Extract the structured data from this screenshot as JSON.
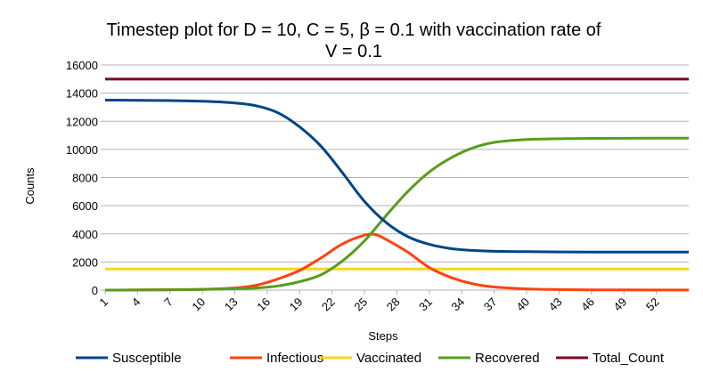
{
  "chart_data": {
    "type": "line",
    "title_line1": "Timestep plot for D = 10, C = 5, β =  0.1 with vaccination rate of",
    "title_line2": "V = 0.1",
    "xlabel": "Steps",
    "ylabel": "Counts",
    "xlim": [
      1,
      55
    ],
    "ylim": [
      0,
      16000
    ],
    "y_ticks": [
      0,
      2000,
      4000,
      6000,
      8000,
      10000,
      12000,
      14000,
      16000
    ],
    "x_tick_labels": [
      "1",
      "4",
      "7",
      "10",
      "13",
      "16",
      "19",
      "22",
      "25",
      "28",
      "31",
      "34",
      "37",
      "40",
      "43",
      "46",
      "49",
      "52"
    ],
    "grid": "horizontal",
    "legend_position": "bottom",
    "series": [
      {
        "name": "Susceptible",
        "color": "#004586",
        "points": [
          [
            1,
            13500
          ],
          [
            4,
            13490
          ],
          [
            7,
            13470
          ],
          [
            10,
            13420
          ],
          [
            13,
            13300
          ],
          [
            15,
            13100
          ],
          [
            17,
            12600
          ],
          [
            19,
            11600
          ],
          [
            21,
            10200
          ],
          [
            23,
            8300
          ],
          [
            25,
            6300
          ],
          [
            27,
            4800
          ],
          [
            29,
            3800
          ],
          [
            31,
            3250
          ],
          [
            33,
            2950
          ],
          [
            35,
            2820
          ],
          [
            37,
            2760
          ],
          [
            40,
            2730
          ],
          [
            43,
            2715
          ],
          [
            46,
            2705
          ],
          [
            49,
            2700
          ],
          [
            52,
            2700
          ],
          [
            55,
            2700
          ]
        ]
      },
      {
        "name": "Infectious",
        "color": "#ff420e",
        "points": [
          [
            1,
            0
          ],
          [
            4,
            10
          ],
          [
            7,
            30
          ],
          [
            10,
            60
          ],
          [
            13,
            150
          ],
          [
            15,
            350
          ],
          [
            17,
            800
          ],
          [
            19,
            1400
          ],
          [
            21,
            2300
          ],
          [
            23,
            3300
          ],
          [
            25,
            3900
          ],
          [
            26,
            3950
          ],
          [
            27,
            3600
          ],
          [
            29,
            2700
          ],
          [
            31,
            1600
          ],
          [
            33,
            900
          ],
          [
            35,
            450
          ],
          [
            37,
            220
          ],
          [
            40,
            90
          ],
          [
            43,
            40
          ],
          [
            46,
            20
          ],
          [
            49,
            10
          ],
          [
            52,
            5
          ],
          [
            55,
            5
          ]
        ]
      },
      {
        "name": "Vaccinated",
        "color": "#ffd320",
        "points": [
          [
            1,
            1500
          ],
          [
            55,
            1500
          ]
        ]
      },
      {
        "name": "Recovered",
        "color": "#579d1c",
        "points": [
          [
            1,
            0
          ],
          [
            4,
            5
          ],
          [
            7,
            20
          ],
          [
            10,
            50
          ],
          [
            13,
            100
          ],
          [
            15,
            150
          ],
          [
            17,
            300
          ],
          [
            19,
            600
          ],
          [
            21,
            1100
          ],
          [
            23,
            2100
          ],
          [
            25,
            3500
          ],
          [
            27,
            5300
          ],
          [
            29,
            7000
          ],
          [
            31,
            8400
          ],
          [
            33,
            9400
          ],
          [
            35,
            10100
          ],
          [
            37,
            10500
          ],
          [
            40,
            10700
          ],
          [
            43,
            10760
          ],
          [
            46,
            10780
          ],
          [
            49,
            10790
          ],
          [
            52,
            10800
          ],
          [
            55,
            10800
          ]
        ]
      },
      {
        "name": "Total_Count",
        "color": "#7e0021",
        "points": [
          [
            1,
            15000
          ],
          [
            55,
            15000
          ]
        ]
      }
    ]
  }
}
